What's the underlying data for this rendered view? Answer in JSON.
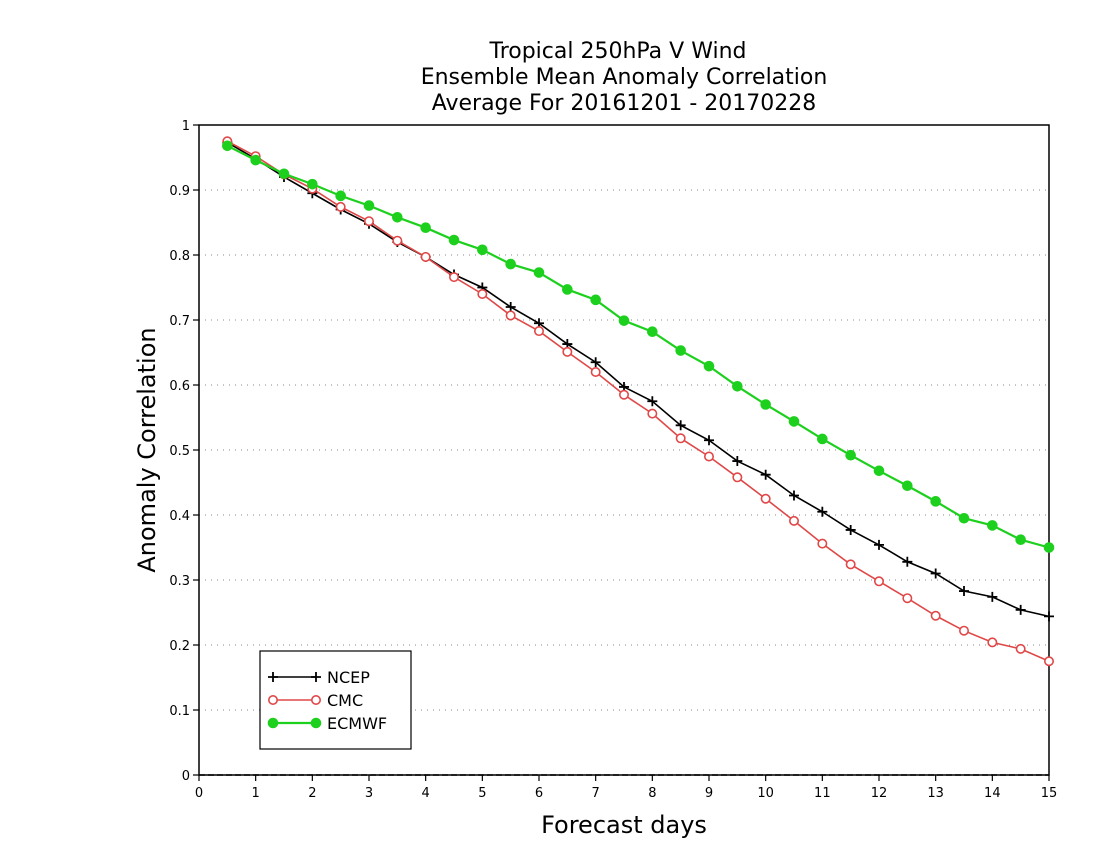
{
  "chart_data": {
    "type": "line",
    "title": [
      "Tropical 250hPa V Wind",
      "Ensemble Mean Anomaly Correlation",
      "Average For 20161201 - 20170228"
    ],
    "xlabel": "Forecast days",
    "ylabel": "Anomaly Correlation",
    "xlim": [
      0,
      15
    ],
    "ylim": [
      0,
      1
    ],
    "xticks": [
      "0",
      "1",
      "2",
      "3",
      "4",
      "5",
      "6",
      "7",
      "8",
      "9",
      "10",
      "11",
      "12",
      "13",
      "14",
      "15"
    ],
    "yticks": [
      "0",
      "0.1",
      "0.2",
      "0.3",
      "0.4",
      "0.5",
      "0.6",
      "0.7",
      "0.8",
      "0.9",
      "1"
    ],
    "grid": "horizontal dotted",
    "legend_position": "bottom-left",
    "x": [
      0.5,
      1,
      1.5,
      2,
      2.5,
      3,
      3.5,
      4,
      4.5,
      5,
      5.5,
      6,
      6.5,
      7,
      7.5,
      8,
      8.5,
      9,
      9.5,
      10,
      10.5,
      11,
      11.5,
      12,
      12.5,
      13,
      13.5,
      14,
      14.5,
      15
    ],
    "series": [
      {
        "name": "NCEP",
        "color": "#000000",
        "marker": "plus",
        "values": [
          0.973,
          0.948,
          0.92,
          0.895,
          0.87,
          0.848,
          0.82,
          0.797,
          0.77,
          0.75,
          0.72,
          0.695,
          0.663,
          0.635,
          0.597,
          0.575,
          0.538,
          0.515,
          0.483,
          0.462,
          0.43,
          0.405,
          0.377,
          0.354,
          0.328,
          0.31,
          0.283,
          0.274,
          0.254,
          0.244
        ]
      },
      {
        "name": "CMC",
        "color": "#e04848",
        "marker": "open-circle",
        "values": [
          0.975,
          0.952,
          0.924,
          0.902,
          0.874,
          0.852,
          0.822,
          0.797,
          0.766,
          0.74,
          0.707,
          0.683,
          0.651,
          0.62,
          0.585,
          0.556,
          0.518,
          0.49,
          0.458,
          0.425,
          0.391,
          0.356,
          0.324,
          0.298,
          0.272,
          0.245,
          0.222,
          0.204,
          0.194,
          0.175
        ]
      },
      {
        "name": "ECMWF",
        "color": "#1ed01e",
        "marker": "filled-circle",
        "values": [
          0.968,
          0.946,
          0.925,
          0.909,
          0.891,
          0.876,
          0.858,
          0.842,
          0.823,
          0.808,
          0.786,
          0.773,
          0.747,
          0.731,
          0.699,
          0.682,
          0.653,
          0.629,
          0.598,
          0.57,
          0.544,
          0.517,
          0.492,
          0.468,
          0.445,
          0.421,
          0.395,
          0.384,
          0.362,
          0.35
        ]
      }
    ]
  }
}
